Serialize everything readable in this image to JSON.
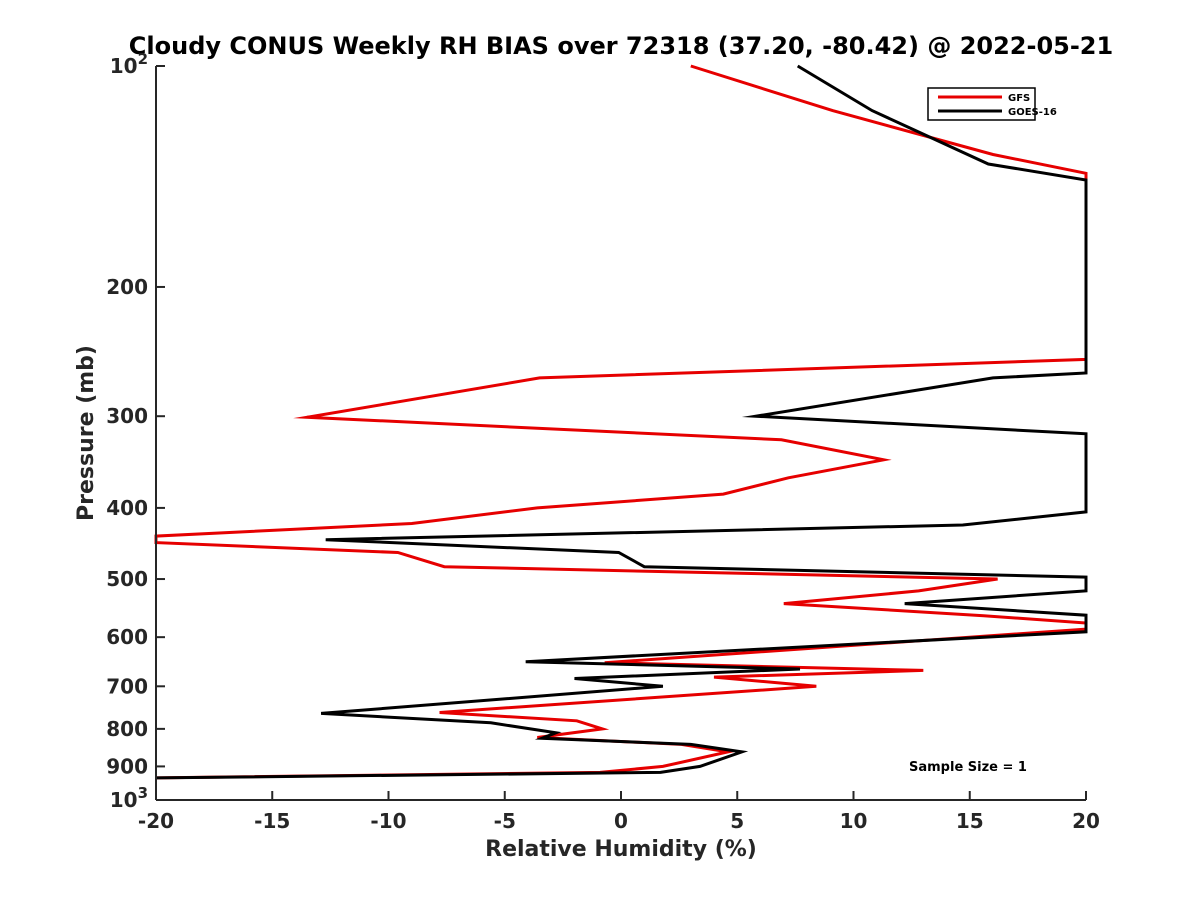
{
  "chart_data": {
    "type": "line",
    "title": "Cloudy CONUS Weekly RH BIAS over 72318 (37.20, -80.42) @ 2022-05-21",
    "xlabel": "Relative Humidity (%)",
    "ylabel": "Pressure (mb)",
    "xlim": [
      -20,
      20
    ],
    "ylim": [
      100,
      1000
    ],
    "yscale": "log",
    "yreversed": true,
    "grid": false,
    "legend_position": "top-right",
    "x_ticks": [
      {
        "value": -20,
        "label": "-20"
      },
      {
        "value": -15,
        "label": "-15"
      },
      {
        "value": -10,
        "label": "-10"
      },
      {
        "value": -5,
        "label": "-5"
      },
      {
        "value": 0,
        "label": "0"
      },
      {
        "value": 5,
        "label": "5"
      },
      {
        "value": 10,
        "label": "10"
      },
      {
        "value": 15,
        "label": "15"
      },
      {
        "value": 20,
        "label": "20"
      }
    ],
    "y_ticks": [
      {
        "value": 100,
        "label": "10",
        "sup": "2"
      },
      {
        "value": 200,
        "label": "200"
      },
      {
        "value": 300,
        "label": "300"
      },
      {
        "value": 400,
        "label": "400"
      },
      {
        "value": 500,
        "label": "500"
      },
      {
        "value": 600,
        "label": "600"
      },
      {
        "value": 700,
        "label": "700"
      },
      {
        "value": 800,
        "label": "800"
      },
      {
        "value": 900,
        "label": "900"
      },
      {
        "value": 1000,
        "label": "10",
        "sup": "3"
      }
    ],
    "annotation": "Sample Size = 1",
    "series": [
      {
        "name": "GFS",
        "color": "#e60000",
        "points": [
          {
            "x": 3,
            "p": 100
          },
          {
            "x": 9.1,
            "p": 115
          },
          {
            "x": 16,
            "p": 132
          },
          {
            "x": 20,
            "p": 140
          },
          {
            "x": 20,
            "p": 251
          },
          {
            "x": -3.5,
            "p": 266
          },
          {
            "x": -13.5,
            "p": 301
          },
          {
            "x": 6.9,
            "p": 323
          },
          {
            "x": 11.3,
            "p": 344
          },
          {
            "x": 7.2,
            "p": 364
          },
          {
            "x": 4.4,
            "p": 383
          },
          {
            "x": -3.6,
            "p": 400
          },
          {
            "x": -9,
            "p": 420
          },
          {
            "x": -20,
            "p": 437
          },
          {
            "x": -20,
            "p": 446
          },
          {
            "x": -9.6,
            "p": 460
          },
          {
            "x": -7.6,
            "p": 481
          },
          {
            "x": 16.2,
            "p": 500
          },
          {
            "x": 12.8,
            "p": 519
          },
          {
            "x": 7,
            "p": 540
          },
          {
            "x": 15.6,
            "p": 561
          },
          {
            "x": 20,
            "p": 574
          },
          {
            "x": 20,
            "p": 585
          },
          {
            "x": -0.7,
            "p": 650
          },
          {
            "x": 13,
            "p": 666
          },
          {
            "x": 4,
            "p": 680
          },
          {
            "x": 8.4,
            "p": 700
          },
          {
            "x": -7.8,
            "p": 760
          },
          {
            "x": -1.9,
            "p": 780
          },
          {
            "x": -0.8,
            "p": 800
          },
          {
            "x": -3.6,
            "p": 822
          },
          {
            "x": 2.6,
            "p": 840
          },
          {
            "x": 4.6,
            "p": 860
          },
          {
            "x": 1.8,
            "p": 900
          },
          {
            "x": -0.9,
            "p": 917
          },
          {
            "x": -20,
            "p": 933
          }
        ]
      },
      {
        "name": "GOES-16",
        "color": "#000000",
        "points": [
          {
            "x": 7.6,
            "p": 100
          },
          {
            "x": 10.8,
            "p": 115
          },
          {
            "x": 15.8,
            "p": 136
          },
          {
            "x": 20,
            "p": 143
          },
          {
            "x": 20,
            "p": 262
          },
          {
            "x": 16,
            "p": 266
          },
          {
            "x": 5.8,
            "p": 300
          },
          {
            "x": 20,
            "p": 317
          },
          {
            "x": 20,
            "p": 405
          },
          {
            "x": 14.7,
            "p": 422
          },
          {
            "x": -12.7,
            "p": 442
          },
          {
            "x": -0.1,
            "p": 460
          },
          {
            "x": 1,
            "p": 481
          },
          {
            "x": 20,
            "p": 497
          },
          {
            "x": 20,
            "p": 519
          },
          {
            "x": 12.2,
            "p": 540
          },
          {
            "x": 20,
            "p": 560
          },
          {
            "x": 20,
            "p": 590
          },
          {
            "x": -4.1,
            "p": 648
          },
          {
            "x": 7.7,
            "p": 663
          },
          {
            "x": -2,
            "p": 683
          },
          {
            "x": 1.8,
            "p": 700
          },
          {
            "x": -12.9,
            "p": 762
          },
          {
            "x": -5.6,
            "p": 785
          },
          {
            "x": -2.8,
            "p": 810
          },
          {
            "x": -3.4,
            "p": 824
          },
          {
            "x": 3,
            "p": 840
          },
          {
            "x": 5.2,
            "p": 860
          },
          {
            "x": 3.4,
            "p": 900
          },
          {
            "x": 1.7,
            "p": 917
          },
          {
            "x": -20,
            "p": 933
          }
        ]
      }
    ]
  }
}
